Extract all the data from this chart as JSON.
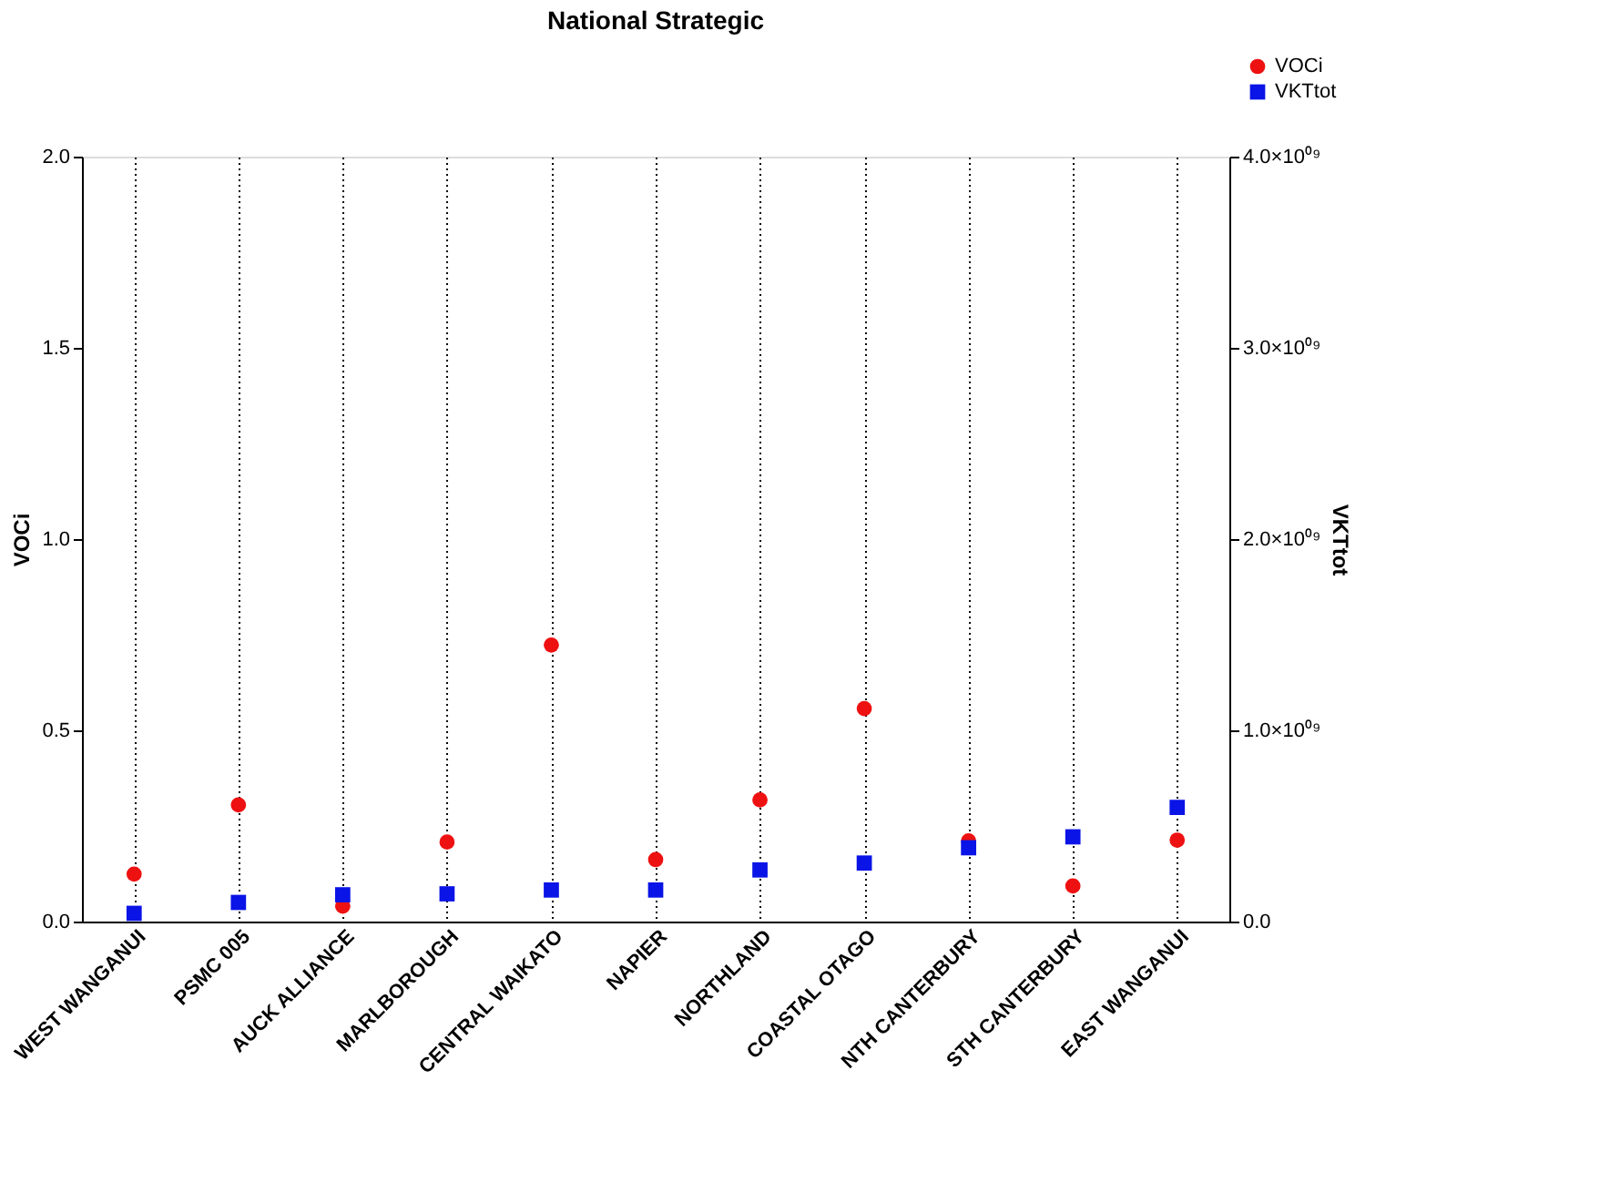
{
  "chart_data": {
    "type": "scatter",
    "title": "National Strategic",
    "ylabel": "VOCi",
    "y2label": "VKTtot",
    "categories": [
      "WEST WANGANUI",
      "PSMC 005",
      "AUCK ALLIANCE",
      "MARLBOROUGH",
      "CENTRAL WAIKATO",
      "NAPIER",
      "NORTHLAND",
      "COASTAL OTAGO",
      "NTH CANTERBURY",
      "STH CANTERBURY",
      "EAST WANGANUI"
    ],
    "series": [
      {
        "name": "VOCi",
        "color": "#ee1111",
        "marker": "circle",
        "values": [
          0.124,
          0.305,
          0.04,
          0.208,
          0.723,
          0.162,
          0.318,
          0.557,
          0.211,
          0.093,
          0.213
        ]
      },
      {
        "name": "VKTtot",
        "color": "#0a14e6",
        "marker": "square",
        "axis": "y2",
        "values": [
          43000000,
          100000000,
          140000000,
          145000000,
          165000000,
          165000000,
          270000000,
          306000000,
          386000000,
          443000000,
          597000000
        ]
      }
    ],
    "ylim": [
      0,
      2
    ],
    "yticks": [
      {
        "value": 0,
        "label": "0.0"
      },
      0.5,
      {
        "value": 1,
        "label": "1.0"
      },
      1.5,
      {
        "value": 2,
        "label": "2.0"
      }
    ],
    "y2lim": [
      0,
      4000000000
    ],
    "y2ticks": [
      {
        "value": 0,
        "label": "0.0"
      },
      {
        "value": 1000000000,
        "label": "1.0×10⁰⁹"
      },
      {
        "value": 2000000000,
        "label": "2.0×10⁰⁹"
      },
      {
        "value": 3000000000,
        "label": "3.0×10⁰⁹"
      },
      {
        "value": 4000000000,
        "label": "4.0×10⁰⁹"
      }
    ],
    "grid": "x",
    "legend": "top right"
  }
}
